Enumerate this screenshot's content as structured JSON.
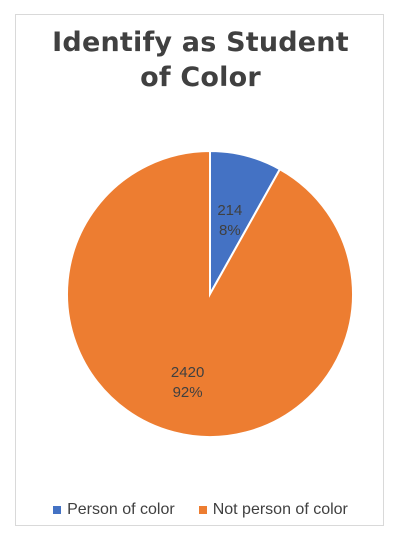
{
  "chart_data": {
    "type": "pie",
    "title": "Identify as Student of Color",
    "title_lines": [
      "Identify as Student",
      "of Color"
    ],
    "slices": [
      {
        "label": "Person of color",
        "value": 214,
        "percent": "8%",
        "color": "#4472C4"
      },
      {
        "label": "Not person of color",
        "value": 2420,
        "percent": "92%",
        "color": "#ED7D31"
      }
    ],
    "legend_placement": "bottom",
    "start_angle": "12 o'clock, clockwise"
  }
}
